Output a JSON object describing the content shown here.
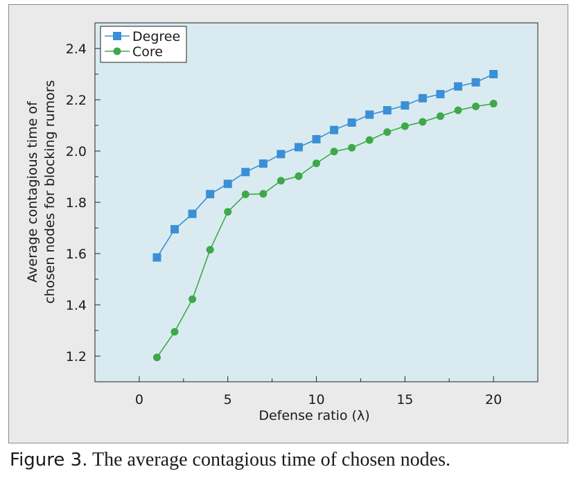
{
  "caption": {
    "label": "Figure 3.",
    "text": " The average contagious time of chosen nodes."
  },
  "colors": {
    "plot_bg": "#d9ebf0",
    "degree": "#3a8fd6",
    "core": "#3fa84a"
  },
  "chart_data": {
    "type": "line",
    "xlabel": "Defense ratio (λ)",
    "ylabel_lines": [
      "Average contagious time of",
      "chosen nodes for blocking rumors"
    ],
    "xlim": [
      -2.5,
      22.5
    ],
    "ylim": [
      1.1,
      2.5
    ],
    "xticks": [
      0,
      5,
      10,
      15,
      20
    ],
    "xtick_labels": [
      "0",
      "5",
      "10",
      "15",
      "20"
    ],
    "yticks": [
      1.2,
      1.4,
      1.6,
      1.8,
      2.0,
      2.2,
      2.4
    ],
    "ytick_labels": [
      "1.2",
      "1.4",
      "1.6",
      "1.8",
      "2.0",
      "2.2",
      "2.4"
    ],
    "legend_position": "top-left",
    "x": [
      1,
      2,
      3,
      4,
      5,
      6,
      7,
      8,
      9,
      10,
      11,
      12,
      13,
      14,
      15,
      16,
      17,
      18,
      19,
      20
    ],
    "series": [
      {
        "name": "Degree",
        "marker": "square",
        "values": [
          1.585,
          1.695,
          1.755,
          1.832,
          1.872,
          1.918,
          1.951,
          1.988,
          2.015,
          2.046,
          2.082,
          2.111,
          2.142,
          2.159,
          2.178,
          2.206,
          2.222,
          2.252,
          2.268,
          2.3
        ]
      },
      {
        "name": "Core",
        "marker": "circle",
        "values": [
          1.195,
          1.295,
          1.422,
          1.615,
          1.763,
          1.831,
          1.833,
          1.884,
          1.902,
          1.952,
          1.998,
          2.013,
          2.043,
          2.074,
          2.097,
          2.114,
          2.136,
          2.159,
          2.174,
          2.185
        ]
      }
    ]
  }
}
